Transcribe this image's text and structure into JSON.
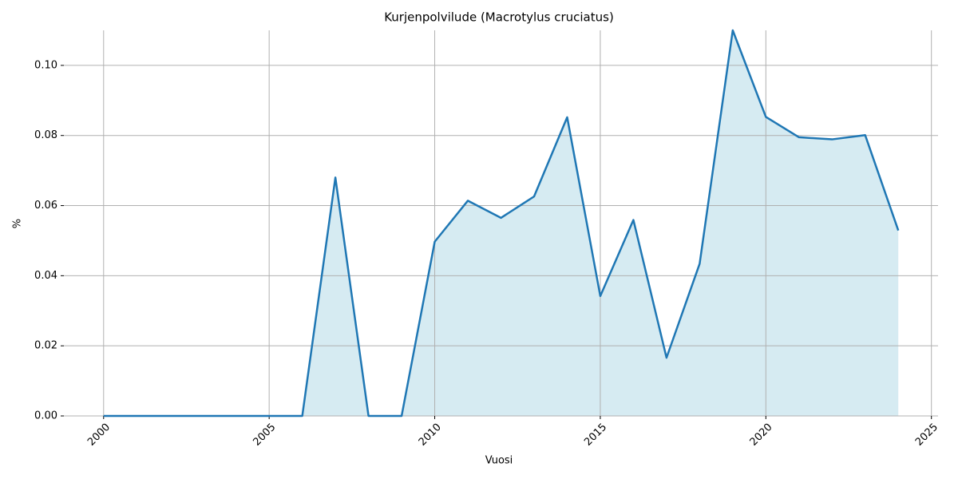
{
  "chart_data": {
    "type": "area-line",
    "title": "Kurjenpolvilude (Macrotylus cruciatus)",
    "x_label": "Vuosi",
    "y_label": "%",
    "x": [
      2000,
      2001,
      2002,
      2003,
      2004,
      2005,
      2006,
      2007,
      2008,
      2009,
      2010,
      2011,
      2012,
      2013,
      2014,
      2015,
      2016,
      2017,
      2018,
      2019,
      2020,
      2021,
      2022,
      2023,
      2024
    ],
    "series": [
      {
        "name": "Kurjenpolvilude",
        "color": "#1f77b4",
        "fill": "#add8e6",
        "values": [
          0,
          0,
          0,
          0,
          0,
          0,
          0,
          0.068,
          0,
          0,
          0.0497,
          0.0614,
          0.0565,
          0.0626,
          0.0852,
          0.0342,
          0.0559,
          0.0166,
          0.0434,
          0.11,
          0.0853,
          0.0795,
          0.0789,
          0.0801,
          0.0529
        ]
      }
    ],
    "xlim": [
      1998.8,
      2025.2
    ],
    "ylim": [
      0,
      0.11
    ],
    "xticks": [
      2000,
      2005,
      2010,
      2015,
      2020,
      2025
    ],
    "yticks": [
      {
        "value": 0,
        "label": "0.00"
      },
      0.02,
      0.04,
      0.06,
      0.08,
      {
        "value": 0.1,
        "label": "0.10"
      }
    ],
    "grid": true
  }
}
